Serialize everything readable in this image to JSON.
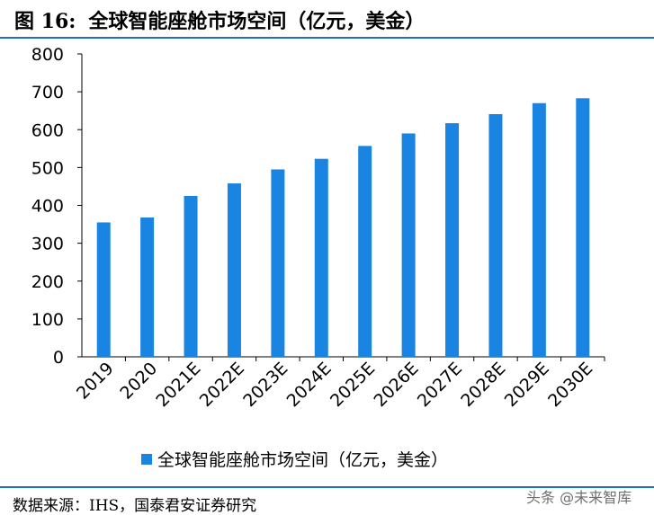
{
  "header": {
    "figure_number": "图 16:",
    "title": "全球智能座舱市场空间（亿元，美金）"
  },
  "chart_data": {
    "type": "bar",
    "categories": [
      "2019",
      "2020",
      "2021E",
      "2022E",
      "2023E",
      "2024E",
      "2025E",
      "2026E",
      "2027E",
      "2028E",
      "2029E",
      "2030E"
    ],
    "series": [
      {
        "name": "全球智能座舱市场空间（亿元，美金）",
        "values": [
          355,
          368,
          425,
          458,
          495,
          523,
          557,
          590,
          617,
          641,
          670,
          683
        ],
        "color": "#1a84e3"
      }
    ],
    "yticks": [
      0,
      100,
      200,
      300,
      400,
      500,
      600,
      700,
      800
    ],
    "ylim": [
      0,
      800
    ],
    "grid": false,
    "legend_position": "bottom"
  },
  "footer": {
    "source": "数据来源：IHS，国泰君安证券研究",
    "watermark": "头条 @未来智库"
  },
  "colors": {
    "bar": "#1a84e3",
    "rule": "#1f6fbf"
  }
}
